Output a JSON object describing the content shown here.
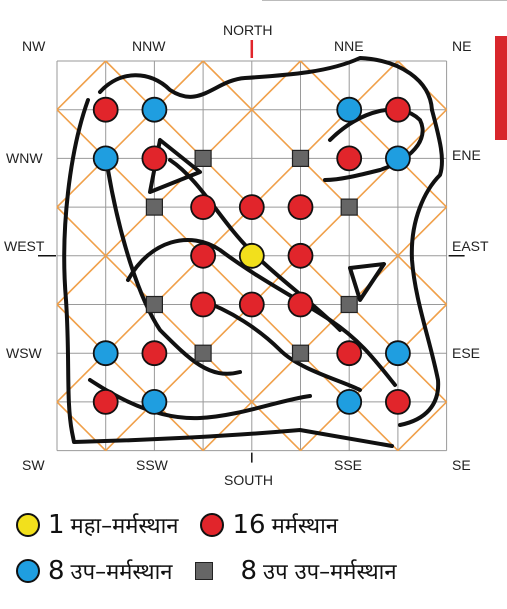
{
  "directions": {
    "north": "NORTH",
    "south": "SOUTH",
    "east": "EAST",
    "west": "WEST",
    "nw": "NW",
    "nnw": "NNW",
    "nne": "NNE",
    "ne": "NE",
    "wnw": "WNW",
    "ene": "ENE",
    "wsw": "WSW",
    "ese": "ESE",
    "sw": "SW",
    "ssw": "SSW",
    "sse": "SSE",
    "se": "SE"
  },
  "legend": {
    "maha_count": "1",
    "maha_label": "महा–मर्मस्थान",
    "marma_count": "16",
    "marma_label": "मर्मस्थान",
    "up_count": "8",
    "up_label": "उप–मर्मस्थान",
    "upup_count": "8",
    "upup_label": "उप उप–मर्मस्थान"
  },
  "colors": {
    "maha": "#f2e01c",
    "marma": "#e1252b",
    "up": "#1f9ee0",
    "upup": "#666666",
    "diagonal": "#f0a04a",
    "grid": "#9a9a9a",
    "figure": "#111111"
  },
  "marma_points": {
    "maha": [
      [
        4,
        4
      ]
    ],
    "marma": [
      [
        1,
        1
      ],
      [
        7,
        1
      ],
      [
        2,
        2
      ],
      [
        6,
        2
      ],
      [
        3,
        3
      ],
      [
        4,
        3
      ],
      [
        5,
        3
      ],
      [
        3,
        4
      ],
      [
        5,
        4
      ],
      [
        3,
        5
      ],
      [
        4,
        5
      ],
      [
        5,
        5
      ],
      [
        2,
        6
      ],
      [
        6,
        6
      ],
      [
        1,
        7
      ],
      [
        7,
        7
      ]
    ],
    "up": [
      [
        2,
        1
      ],
      [
        6,
        1
      ],
      [
        1,
        2
      ],
      [
        7,
        2
      ],
      [
        1,
        6
      ],
      [
        7,
        6
      ],
      [
        2,
        7
      ],
      [
        6,
        7
      ]
    ],
    "upup": [
      [
        3,
        2
      ],
      [
        5,
        2
      ],
      [
        2,
        3
      ],
      [
        6,
        3
      ],
      [
        2,
        5
      ],
      [
        6,
        5
      ],
      [
        3,
        6
      ],
      [
        5,
        6
      ]
    ]
  }
}
